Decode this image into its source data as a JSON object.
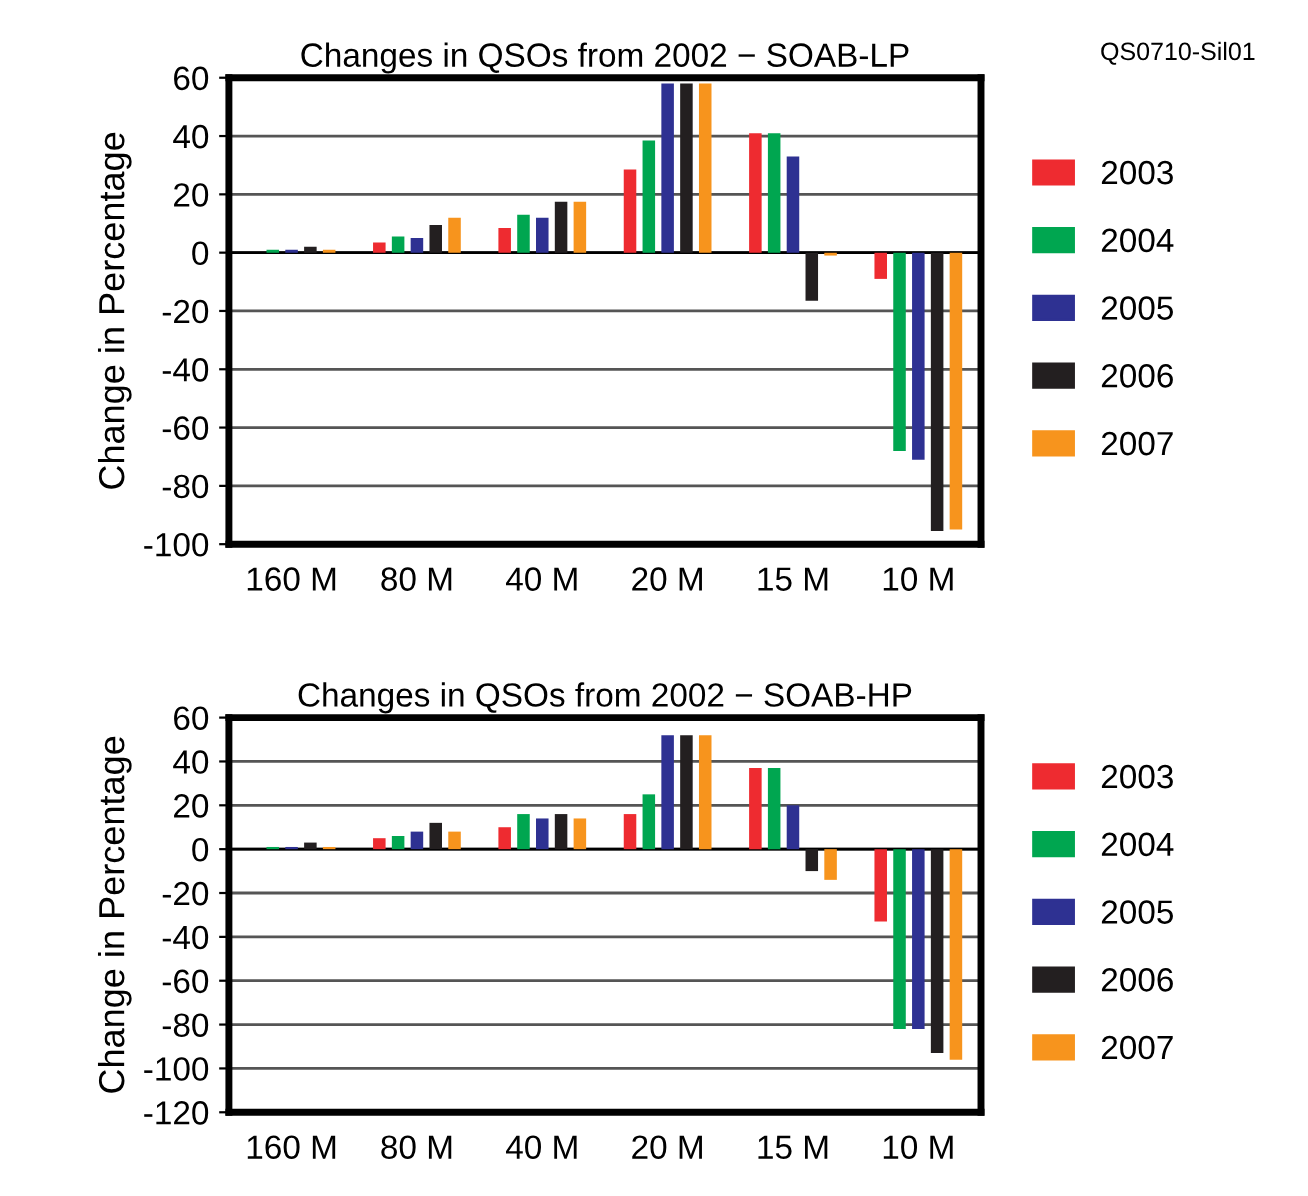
{
  "chart_data": [
    {
      "type": "bar",
      "title": "Changes in QSOs from 2002 − SOAB-LP",
      "ylabel": "Change in Percentage",
      "annotations": [
        "QS0710-Sil01"
      ],
      "categories": [
        "160 M",
        "80 M",
        "40 M",
        "20 M",
        "15 M",
        "10 M"
      ],
      "ylim": [
        -100,
        60
      ],
      "yticks": [
        -100,
        -80,
        -60,
        -40,
        -20,
        0,
        20,
        40,
        60
      ],
      "grid": "y",
      "legend": "right",
      "series": [
        {
          "name": "2003",
          "color": "#ee2b30",
          "values": [
            0,
            3.5,
            8.5,
            28.5,
            41,
            -9
          ]
        },
        {
          "name": "2004",
          "color": "#00a650",
          "values": [
            1,
            5.5,
            13,
            38.5,
            41,
            -68
          ]
        },
        {
          "name": "2005",
          "color": "#2e3192",
          "values": [
            1,
            5,
            12,
            58,
            33,
            -71
          ]
        },
        {
          "name": "2006",
          "color": "#231f20",
          "values": [
            2,
            9.5,
            17.5,
            58,
            -16.5,
            -95.5
          ]
        },
        {
          "name": "2007",
          "color": "#f7941d",
          "values": [
            1,
            12,
            17.5,
            58,
            -1,
            -95
          ]
        }
      ]
    },
    {
      "type": "bar",
      "title": "Changes in QSOs from 2002 − SOAB-HP",
      "ylabel": "Change in Percentage",
      "categories": [
        "160 M",
        "80 M",
        "40 M",
        "20 M",
        "15 M",
        "10 M"
      ],
      "ylim": [
        -120,
        60
      ],
      "yticks": [
        -120,
        -100,
        -80,
        -60,
        -40,
        -20,
        0,
        20,
        40,
        60
      ],
      "grid": "y",
      "legend": "right",
      "series": [
        {
          "name": "2003",
          "color": "#ee2b30",
          "values": [
            0,
            5,
            10,
            16,
            37,
            -33
          ]
        },
        {
          "name": "2004",
          "color": "#00a650",
          "values": [
            1,
            6,
            16,
            25,
            37,
            -82
          ]
        },
        {
          "name": "2005",
          "color": "#2e3192",
          "values": [
            1,
            8,
            14,
            52,
            20,
            -82
          ]
        },
        {
          "name": "2006",
          "color": "#231f20",
          "values": [
            3,
            12,
            16,
            52,
            -10,
            -93
          ]
        },
        {
          "name": "2007",
          "color": "#f7941d",
          "values": [
            1,
            8,
            14,
            52,
            -14,
            -96
          ]
        }
      ]
    }
  ]
}
